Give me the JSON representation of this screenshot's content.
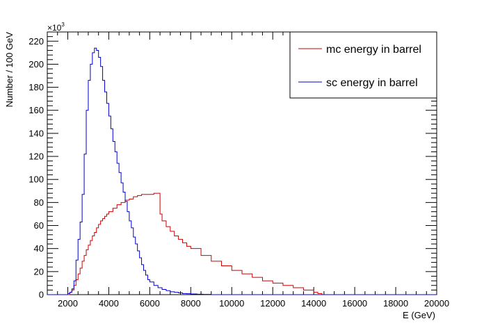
{
  "chart_data": {
    "type": "line",
    "title": "",
    "xlabel": "E (GeV)",
    "ylabel": "Number / 100 GeV",
    "y_exponent_label": "×10",
    "y_exponent_power": "3",
    "xlim": [
      1000,
      20000
    ],
    "ylim": [
      0,
      228
    ],
    "x_ticks": [
      2000,
      4000,
      6000,
      8000,
      10000,
      12000,
      14000,
      16000,
      18000,
      20000
    ],
    "y_ticks": [
      0,
      20,
      40,
      60,
      80,
      100,
      120,
      140,
      160,
      180,
      200,
      220
    ],
    "grid": false,
    "legend_position": "top-right",
    "series": [
      {
        "name": "mc energy in barrel",
        "color": "#cc0000",
        "style": "step",
        "x": [
          1000,
          1500,
          2000,
          2100,
          2200,
          2300,
          2400,
          2500,
          2600,
          2700,
          2800,
          2900,
          3000,
          3100,
          3200,
          3300,
          3400,
          3500,
          3600,
          3700,
          3800,
          3900,
          4000,
          4200,
          4400,
          4600,
          4800,
          5000,
          5200,
          5400,
          5600,
          5800,
          6000,
          6200,
          6400,
          6500,
          6600,
          6800,
          7000,
          7200,
          7400,
          7600,
          7800,
          8000,
          8500,
          9000,
          9500,
          10000,
          10500,
          11000,
          11500,
          12000,
          12500,
          13000,
          13500,
          14000,
          14200,
          14400,
          15000,
          20000
        ],
        "y": [
          0,
          0,
          0,
          2,
          4,
          8,
          13,
          18,
          23,
          29,
          34,
          39,
          43,
          47,
          51,
          54,
          58,
          61,
          64,
          66,
          68,
          70,
          72,
          75,
          78,
          80,
          82,
          83,
          85,
          86,
          87,
          87,
          87,
          88,
          88,
          70,
          64,
          59,
          55,
          51,
          48,
          45,
          42,
          40,
          34,
          29,
          25,
          21,
          18,
          15,
          12,
          10,
          8,
          6,
          4,
          2,
          1,
          0,
          0,
          0
        ]
      },
      {
        "name": "sc energy in barrel",
        "color": "#0000cc",
        "style": "step",
        "x": [
          1000,
          1800,
          2000,
          2100,
          2200,
          2300,
          2400,
          2500,
          2600,
          2700,
          2800,
          2900,
          3000,
          3100,
          3200,
          3300,
          3400,
          3500,
          3600,
          3700,
          3800,
          3900,
          4000,
          4100,
          4200,
          4300,
          4400,
          4500,
          4600,
          4700,
          4800,
          4900,
          5000,
          5100,
          5200,
          5300,
          5400,
          5500,
          5600,
          5700,
          5800,
          5900,
          6000,
          6200,
          6400,
          6600,
          6800,
          7000,
          7200,
          7400,
          7600,
          7800,
          8000,
          8300,
          8600,
          9000,
          20000
        ],
        "y": [
          0,
          0,
          1,
          2,
          5,
          12,
          30,
          48,
          63,
          87,
          122,
          160,
          186,
          200,
          210,
          214,
          212,
          206,
          198,
          186,
          176,
          166,
          155,
          144,
          133,
          124,
          114,
          106,
          97,
          89,
          81,
          72,
          64,
          58,
          50,
          44,
          38,
          32,
          26,
          21,
          17,
          13,
          11,
          8,
          6,
          4.5,
          3.5,
          2.5,
          2,
          1.5,
          1,
          0.8,
          0.6,
          0.4,
          0.2,
          0,
          0
        ]
      }
    ]
  }
}
